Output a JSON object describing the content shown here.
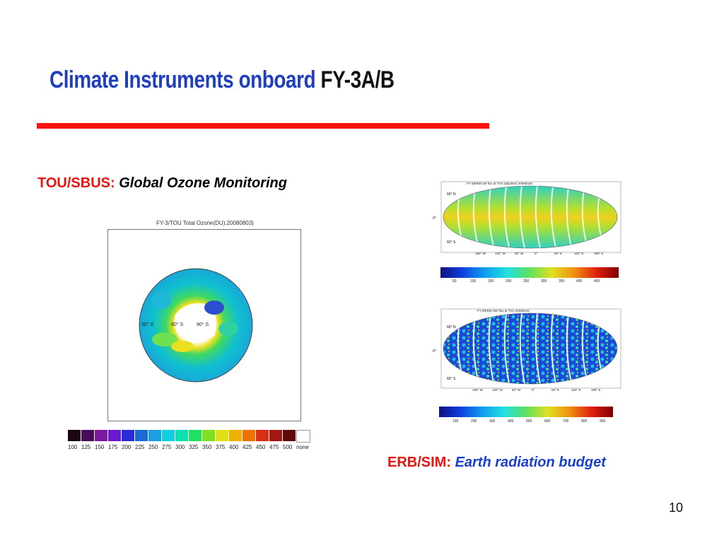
{
  "title": {
    "main": "Climate Instruments onboard ",
    "highlight": "FY-3A/B"
  },
  "tou": {
    "prefix": "TOU/SBUS:",
    "desc": "Global Ozone Monitoring"
  },
  "erb": {
    "prefix": "ERB/SIM:",
    "desc": "Earth radiation budget"
  },
  "ozone_plot": {
    "title": "FY-3/TOU Total Ozone(DU),20080803)",
    "lat_labels": [
      "30° S",
      "60° S",
      "90° S"
    ],
    "colorbar_labels": [
      "100",
      "125",
      "150",
      "175",
      "200",
      "225",
      "250",
      "275",
      "300",
      "325",
      "350",
      "375",
      "400",
      "425",
      "450",
      "475",
      "500",
      "none"
    ],
    "colorbar_colors": [
      "#1a0510",
      "#4a0a5a",
      "#7a1a9a",
      "#6a1ad0",
      "#2a2ad8",
      "#1a6ad8",
      "#1aa0e0",
      "#10d0e0",
      "#10e0b0",
      "#20e060",
      "#80e020",
      "#e0e010",
      "#f0b000",
      "#f07000",
      "#d83010",
      "#a01810",
      "#600808",
      "#ffffff"
    ],
    "accent": "#ffffff"
  },
  "lw_map": {
    "title": "FY-3/ERM LW flux at TOA (daytime) 20080416",
    "lat_labels": [
      "60° N",
      "0°",
      "60° S"
    ],
    "lon_labels": [
      "180° W",
      "120° W",
      "60° W",
      "0°",
      "60° E",
      "120° E",
      "180° E"
    ],
    "colorbar_labels": [
      "50",
      "100",
      "150",
      "200",
      "250",
      "300",
      "350",
      "400",
      "450"
    ]
  },
  "sw_map": {
    "title": "FY-3/ERM SW flux at TOA 20080416",
    "lat_labels": [
      "60° N",
      "0°",
      "60° S"
    ],
    "lon_labels": [
      "180° W",
      "120° W",
      "60° W",
      "0°",
      "60° E",
      "120° E",
      "180° E"
    ],
    "colorbar_labels": [
      "100",
      "200",
      "300",
      "400",
      "500",
      "600",
      "700",
      "800",
      "900"
    ]
  },
  "page_number": "10"
}
